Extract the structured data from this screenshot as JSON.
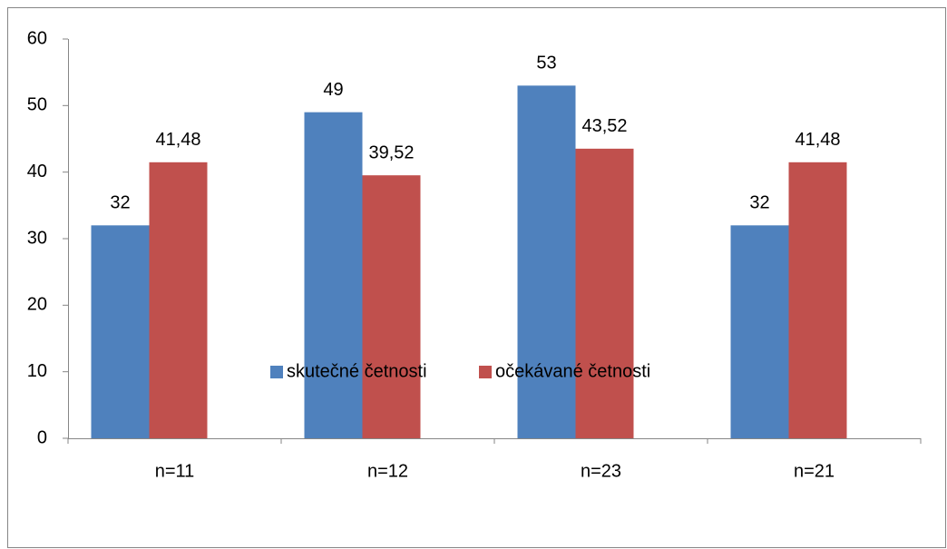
{
  "chart_data": {
    "type": "bar",
    "categories": [
      "n=11",
      "n=12",
      "n=23",
      "n=21"
    ],
    "series": [
      {
        "name": "skutečné četnosti",
        "color": "#4f81bd",
        "values": [
          32,
          49,
          53,
          32
        ]
      },
      {
        "name": "očekávané četnosti",
        "color": "#c0504d",
        "values": [
          41.48,
          39.52,
          43.52,
          41.48
        ],
        "value_labels": [
          "41,48",
          "39,52",
          "43,52",
          "41,48"
        ]
      }
    ],
    "ylim": [
      0,
      60
    ],
    "yticks": [
      0,
      10,
      20,
      30,
      40,
      50,
      60
    ],
    "grid": false,
    "legend": "bottom"
  }
}
